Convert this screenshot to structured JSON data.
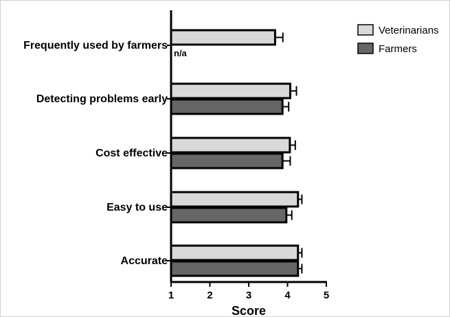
{
  "chart_data": {
    "type": "bar",
    "orientation": "horizontal",
    "categories": [
      "Frequently used by farmers",
      "Detecting problems early",
      "Cost effective",
      "Easy to use",
      "Accurate"
    ],
    "series": [
      {
        "name": "Veterinarians",
        "color": "#d9d9d9",
        "values": [
          3.68,
          4.07,
          4.06,
          4.27,
          4.27
        ],
        "errors": [
          0.2,
          0.16,
          0.14,
          0.1,
          0.1
        ]
      },
      {
        "name": "Farmers",
        "color": "#666666",
        "values": [
          null,
          3.87,
          3.87,
          3.97,
          4.27
        ],
        "errors": [
          null,
          0.16,
          0.2,
          0.14,
          0.1
        ]
      }
    ],
    "missing_label": "n/a",
    "xlabel": "Score",
    "xlim": [
      1,
      5
    ],
    "xticks": [
      "1",
      "2",
      "3",
      "4",
      "5"
    ],
    "grid": false,
    "legend_position": "top-right"
  }
}
